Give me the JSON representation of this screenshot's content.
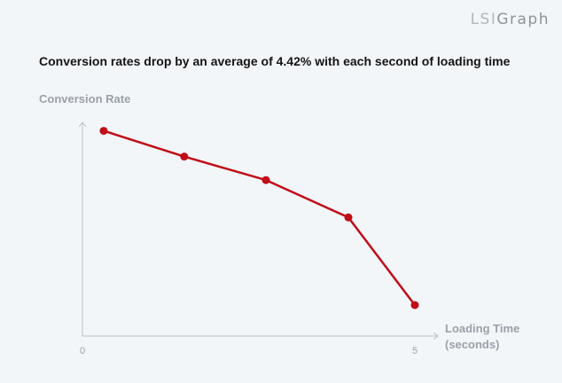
{
  "brand": {
    "part1": "LSI",
    "part2": "Graph"
  },
  "chart_data": {
    "type": "line",
    "title": "Conversion rates drop by an average of 4.42% with each second of loading time",
    "ylabel": "Conversion Rate",
    "xlabel_line1": "Loading Time",
    "xlabel_line2": "(seconds)",
    "xlim": [
      0,
      5
    ],
    "ylim": [
      0,
      10
    ],
    "x_ticks": [
      "0",
      "5"
    ],
    "x": [
      0.32,
      1.53,
      2.76,
      4.0,
      5.0
    ],
    "y": [
      9.6,
      8.4,
      7.3,
      5.55,
      1.45
    ],
    "colors": {
      "line": "#c00d17",
      "axis": "#b9c0c7"
    },
    "grid": false
  }
}
